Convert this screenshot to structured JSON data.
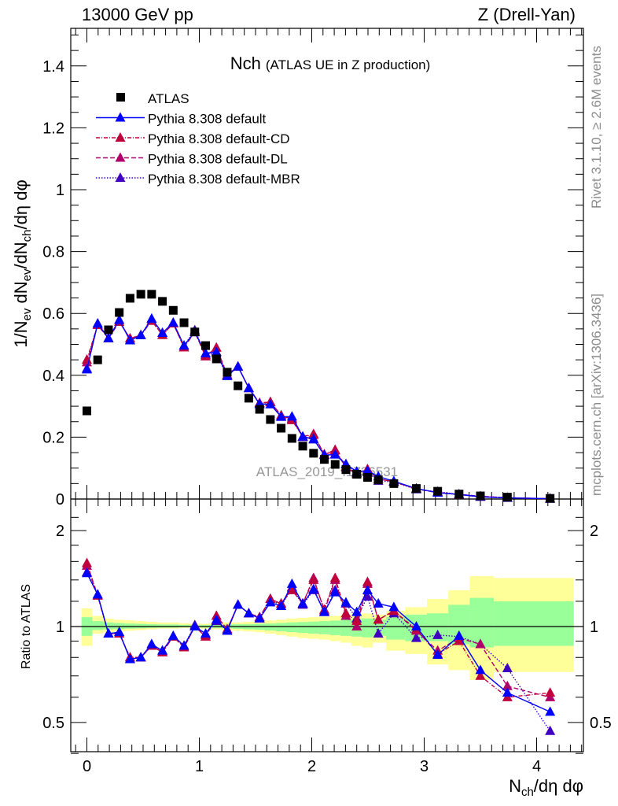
{
  "header": {
    "left": "13000 GeV pp",
    "right": "Z (Drell-Yan)"
  },
  "side": {
    "rivet": "Rivet 3.1.10, ≥ 2.6M events",
    "mcplots": "mcplots.cern.ch [arXiv:1306.3436]"
  },
  "watermark": "ATLAS_2019_I1736531",
  "colors": {
    "atlas": "#000000",
    "default": "#0000ff",
    "cd": "#c0003c",
    "dl": "#b0006a",
    "mbr": "#4000c0",
    "yellow": "#ffff99",
    "green": "#99ff99"
  },
  "chart_data": {
    "type": "scatter",
    "title": "Nch",
    "subtitle": "(ATLAS UE in Z production)",
    "ylabel_parts": [
      "1/N",
      "ev",
      " dN",
      "ev",
      "/dN",
      "ch",
      "/dη dφ"
    ],
    "xlabel_parts": [
      "N",
      "ch",
      "/dη dφ"
    ],
    "ratio_ylabel": "Ratio to ATLAS",
    "xlim": [
      -0.13,
      4.47
    ],
    "ylim": [
      0,
      1.52
    ],
    "ratio_ylim": [
      0.34,
      2.4
    ],
    "xticks": [
      "0",
      "1",
      "2",
      "3",
      "4"
    ],
    "yticks": [
      "0",
      "0.2",
      "0.4",
      "0.6",
      "0.8",
      "1",
      "1.2",
      "1.4"
    ],
    "ratio_yticks": [
      "0.5",
      "1",
      "2"
    ],
    "legend": [
      "ATLAS",
      "Pythia 8.308 default",
      "Pythia 8.308 default-CD",
      "Pythia 8.308 default-DL",
      "Pythia 8.308 default-MBR"
    ],
    "x": [
      0,
      0.096,
      0.192,
      0.288,
      0.384,
      0.48,
      0.576,
      0.672,
      0.768,
      0.864,
      0.96,
      1.056,
      1.152,
      1.248,
      1.344,
      1.44,
      1.536,
      1.632,
      1.728,
      1.824,
      1.92,
      2.016,
      2.112,
      2.208,
      2.304,
      2.4,
      2.496,
      2.592,
      2.73,
      2.93,
      3.12,
      3.31,
      3.5,
      3.74,
      4.12
    ],
    "atlas": [
      0.285,
      0.45,
      0.547,
      0.603,
      0.649,
      0.662,
      0.662,
      0.639,
      0.61,
      0.57,
      0.54,
      0.496,
      0.453,
      0.41,
      0.366,
      0.326,
      0.29,
      0.257,
      0.229,
      0.196,
      0.171,
      0.148,
      0.128,
      0.112,
      0.095,
      0.08,
      0.07,
      0.062,
      0.05,
      0.034,
      0.025,
      0.016,
      0.01,
      0.006,
      0.002
    ],
    "series": [
      {
        "name": "Pythia 8.308 default",
        "key": "default",
        "ratio": [
          1.47,
          1.26,
          0.95,
          0.96,
          0.79,
          0.8,
          0.88,
          0.84,
          0.935,
          0.87,
          1.0,
          0.95,
          1.05,
          0.97,
          1.17,
          1.1,
          1.06,
          1.19,
          1.16,
          1.36,
          1.18,
          1.31,
          1.11,
          1.28,
          1.19,
          1.11,
          1.3,
          1.18,
          1.15,
          1.0,
          0.815,
          0.935,
          0.73,
          0.62,
          0.54
        ]
      },
      {
        "name": "Pythia 8.308 default-CD",
        "key": "cd",
        "ratio": [
          1.58,
          1.25,
          0.95,
          0.95,
          0.8,
          0.8,
          0.87,
          0.83,
          0.93,
          0.86,
          1.0,
          0.93,
          1.08,
          0.98,
          1.17,
          1.1,
          1.07,
          1.22,
          1.18,
          1.3,
          1.18,
          1.4,
          1.13,
          1.42,
          1.1,
          1.04,
          1.38,
          1.05,
          1.12,
          0.98,
          0.82,
          0.9,
          0.7,
          0.6,
          0.62
        ]
      },
      {
        "name": "Pythia 8.308 default-DL",
        "key": "dl",
        "ratio": [
          1.55,
          1.25,
          0.95,
          0.95,
          0.8,
          0.8,
          0.87,
          0.83,
          0.93,
          0.86,
          1.0,
          0.93,
          1.08,
          0.98,
          1.17,
          1.1,
          1.07,
          1.22,
          1.18,
          1.32,
          1.18,
          1.42,
          1.12,
          1.4,
          1.08,
          1.0,
          1.36,
          1.05,
          1.12,
          0.97,
          0.84,
          0.92,
          0.88,
          0.65,
          0.6
        ]
      },
      {
        "name": "Pythia 8.308 default-MBR",
        "key": "mbr",
        "ratio": [
          1.48,
          1.26,
          0.95,
          0.96,
          0.79,
          0.8,
          0.88,
          0.84,
          0.93,
          0.87,
          1.01,
          0.94,
          1.04,
          0.97,
          1.17,
          1.1,
          1.06,
          1.22,
          1.16,
          1.33,
          1.17,
          1.3,
          1.11,
          1.3,
          1.18,
          1.06,
          1.24,
          0.95,
          1.1,
          0.92,
          0.94,
          0.93,
          0.88,
          0.74,
          0.47
        ]
      }
    ],
    "band_total": {
      "lo": [
        0.87,
        0.95,
        0.96,
        0.965,
        0.97,
        0.975,
        0.98,
        0.985,
        0.985,
        0.99,
        0.99,
        0.985,
        0.98,
        0.975,
        0.97,
        0.965,
        0.96,
        0.95,
        0.94,
        0.93,
        0.92,
        0.915,
        0.91,
        0.9,
        0.89,
        0.87,
        0.86,
        0.89,
        0.84,
        0.82,
        0.76,
        0.73,
        0.68,
        0.72,
        0.72
      ],
      "hi": [
        1.14,
        1.08,
        1.06,
        1.05,
        1.045,
        1.04,
        1.035,
        1.03,
        1.03,
        1.025,
        1.02,
        1.02,
        1.025,
        1.03,
        1.03,
        1.035,
        1.04,
        1.045,
        1.05,
        1.06,
        1.065,
        1.07,
        1.075,
        1.08,
        1.09,
        1.1,
        1.1,
        1.09,
        1.12,
        1.15,
        1.22,
        1.3,
        1.44,
        1.42,
        1.42
      ]
    },
    "band_stat": {
      "lo": [
        0.935,
        0.975,
        0.98,
        0.982,
        0.985,
        0.987,
        0.99,
        0.992,
        0.992,
        0.995,
        0.995,
        0.992,
        0.99,
        0.987,
        0.984,
        0.98,
        0.977,
        0.972,
        0.966,
        0.96,
        0.955,
        0.95,
        0.946,
        0.94,
        0.935,
        0.93,
        0.925,
        0.935,
        0.91,
        0.9,
        0.9,
        0.88,
        0.86,
        0.87,
        0.87
      ],
      "hi": [
        1.07,
        1.04,
        1.03,
        1.025,
        1.022,
        1.02,
        1.017,
        1.015,
        1.015,
        1.012,
        1.01,
        1.01,
        1.012,
        1.015,
        1.016,
        1.018,
        1.02,
        1.022,
        1.026,
        1.03,
        1.033,
        1.036,
        1.04,
        1.044,
        1.05,
        1.055,
        1.06,
        1.05,
        1.07,
        1.09,
        1.1,
        1.17,
        1.23,
        1.2,
        1.2
      ]
    }
  }
}
